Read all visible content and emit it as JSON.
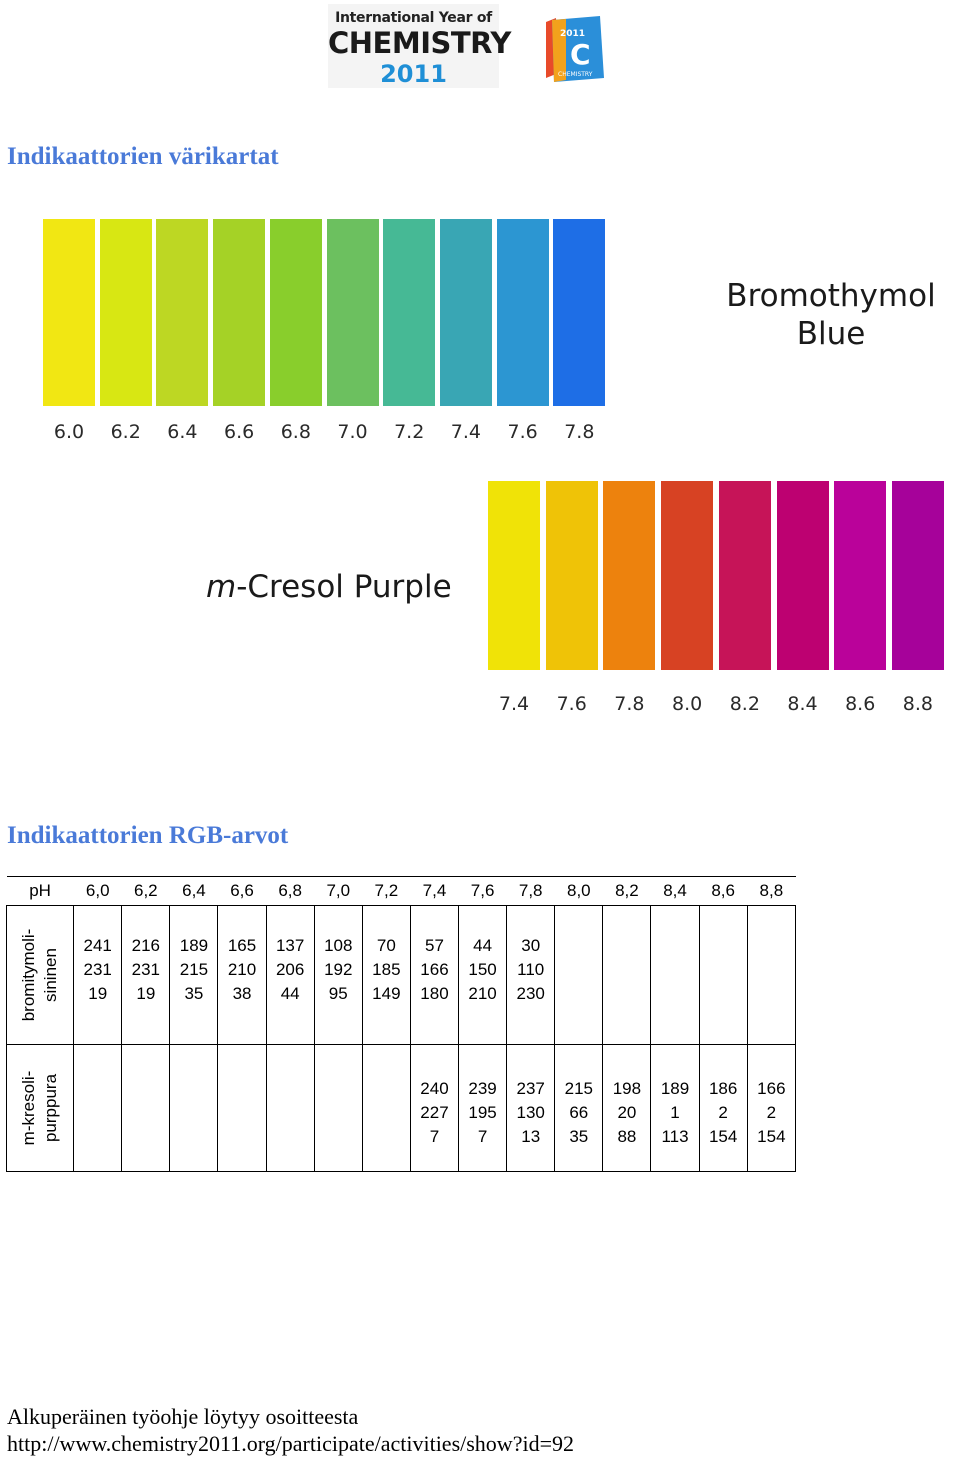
{
  "logos": {
    "iyc": {
      "line1": "International Year of",
      "line2": "CHEMISTRY",
      "line3": "2011"
    },
    "c_logo": {
      "year": "2011",
      "letter": "C",
      "word": "CHEMISTRY"
    }
  },
  "titles": {
    "charts": "Indikaattorien värikartat",
    "rgb": "Indikaattorien RGB-arvot"
  },
  "bromothymol_chart": {
    "name_line1": "Bromothymol",
    "name_line2": "Blue",
    "swatches": [
      {
        "ph": "6.0",
        "color": "#f1e713"
      },
      {
        "ph": "6.2",
        "color": "#d8e713"
      },
      {
        "ph": "6.4",
        "color": "#bdd723"
      },
      {
        "ph": "6.6",
        "color": "#a5d226"
      },
      {
        "ph": "6.8",
        "color": "#89ce2c"
      },
      {
        "ph": "7.0",
        "color": "#6cc05f"
      },
      {
        "ph": "7.2",
        "color": "#46b995"
      },
      {
        "ph": "7.4",
        "color": "#39a6b4"
      },
      {
        "ph": "7.6",
        "color": "#2c96d2"
      },
      {
        "ph": "7.8",
        "color": "#1e6ee6"
      }
    ]
  },
  "cresol_chart": {
    "name_italic": "m",
    "name_rest": "-Cresol Purple",
    "swatches": [
      {
        "ph": "7.4",
        "color": "#f0e307"
      },
      {
        "ph": "7.6",
        "color": "#efc307"
      },
      {
        "ph": "7.8",
        "color": "#ed820d"
      },
      {
        "ph": "8.0",
        "color": "#d74223"
      },
      {
        "ph": "8.2",
        "color": "#c61458"
      },
      {
        "ph": "8.4",
        "color": "#bd0171"
      },
      {
        "ph": "8.6",
        "color": "#ba029a"
      },
      {
        "ph": "8.8",
        "color": "#a6029a"
      }
    ]
  },
  "rgb_table": {
    "ph_label": "pH",
    "ph_values": [
      "6,0",
      "6,2",
      "6,4",
      "6,6",
      "6,8",
      "7,0",
      "7,2",
      "7,4",
      "7,6",
      "7,8",
      "8,0",
      "8,2",
      "8,4",
      "8,6",
      "8,8"
    ],
    "rows": [
      {
        "label_line1": "bromitymoli-",
        "label_line2": "sininen",
        "cells": [
          [
            "241",
            "231",
            "19"
          ],
          [
            "216",
            "231",
            "19"
          ],
          [
            "189",
            "215",
            "35"
          ],
          [
            "165",
            "210",
            "38"
          ],
          [
            "137",
            "206",
            "44"
          ],
          [
            "108",
            "192",
            "95"
          ],
          [
            "70",
            "185",
            "149"
          ],
          [
            "57",
            "166",
            "180"
          ],
          [
            "44",
            "150",
            "210"
          ],
          [
            "30",
            "110",
            "230"
          ],
          null,
          null,
          null,
          null,
          null
        ]
      },
      {
        "label_line1": "m-kresoli-",
        "label_line2": "purppura",
        "cells": [
          null,
          null,
          null,
          null,
          null,
          null,
          null,
          [
            "240",
            "227",
            "7"
          ],
          [
            "239",
            "195",
            "7"
          ],
          [
            "237",
            "130",
            "13"
          ],
          [
            "215",
            "66",
            "35"
          ],
          [
            "198",
            "20",
            "88"
          ],
          [
            "189",
            "1",
            "113"
          ],
          [
            "186",
            "2",
            "154"
          ],
          [
            "166",
            "2",
            "154"
          ]
        ]
      }
    ]
  },
  "footer": {
    "line1": "Alkuperäinen työohje löytyy osoitteesta",
    "line2": "http://www.chemistry2011.org/participate/activities/show?id=92"
  }
}
